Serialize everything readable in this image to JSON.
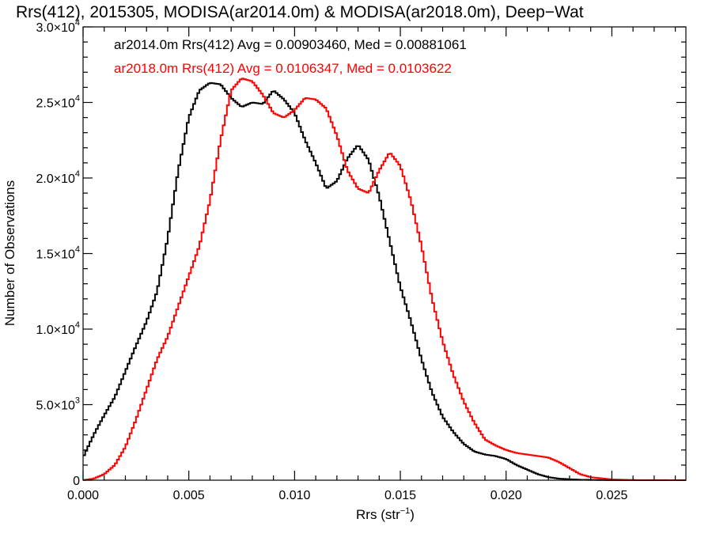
{
  "chart_data": {
    "type": "line",
    "step": true,
    "title": "Rrs(412), 2015305, MODISA(ar2014.0m) & MODISA(ar2018.0m), Deep−Wat",
    "xlabel_base": "Rrs (str",
    "xlabel_sup": "−1",
    "xlabel_close": ")",
    "ylabel": "Number of Observations",
    "xlim": [
      0.0,
      0.0285
    ],
    "ylim": [
      0,
      30000
    ],
    "x_ticks": [
      {
        "value": 0.0,
        "label": "0.000"
      },
      {
        "value": 0.005,
        "label": "0.005"
      },
      {
        "value": 0.01,
        "label": "0.010"
      },
      {
        "value": 0.015,
        "label": "0.015"
      },
      {
        "value": 0.02,
        "label": "0.020"
      },
      {
        "value": 0.025,
        "label": "0.025"
      }
    ],
    "y_ticks": [
      {
        "value": 0,
        "mant": "0",
        "exp": ""
      },
      {
        "value": 5000,
        "mant": "5.0×10",
        "exp": "3"
      },
      {
        "value": 10000,
        "mant": "1.0×10",
        "exp": "4"
      },
      {
        "value": 15000,
        "mant": "1.5×10",
        "exp": "4"
      },
      {
        "value": 20000,
        "mant": "2.0×10",
        "exp": "4"
      },
      {
        "value": 25000,
        "mant": "2.5×10",
        "exp": "4"
      },
      {
        "value": 30000,
        "mant": "3.0×10",
        "exp": "4"
      }
    ],
    "legend": [
      {
        "text": "ar2014.0m Rrs(412) Avg = 0.00903460, Med = 0.00881061",
        "color": "#000000"
      },
      {
        "text": "ar2018.0m Rrs(412) Avg = 0.0106347, Med = 0.0103622",
        "color": "#ff0000"
      }
    ],
    "series": [
      {
        "color": "#000000",
        "points": [
          [
            0.0,
            1500
          ],
          [
            0.0005,
            3000
          ],
          [
            0.001,
            4300
          ],
          [
            0.0015,
            5500
          ],
          [
            0.002,
            7200
          ],
          [
            0.0025,
            8900
          ],
          [
            0.003,
            10500
          ],
          [
            0.0035,
            12500
          ],
          [
            0.004,
            16000
          ],
          [
            0.0045,
            20500
          ],
          [
            0.005,
            24000
          ],
          [
            0.0055,
            25800
          ],
          [
            0.006,
            26300
          ],
          [
            0.0065,
            26200
          ],
          [
            0.007,
            25300
          ],
          [
            0.0075,
            24700
          ],
          [
            0.008,
            25000
          ],
          [
            0.0085,
            24900
          ],
          [
            0.009,
            25800
          ],
          [
            0.0095,
            25200
          ],
          [
            0.01,
            24300
          ],
          [
            0.0105,
            22500
          ],
          [
            0.011,
            21000
          ],
          [
            0.0115,
            19300
          ],
          [
            0.012,
            19800
          ],
          [
            0.0125,
            21300
          ],
          [
            0.013,
            22200
          ],
          [
            0.0135,
            21200
          ],
          [
            0.014,
            18800
          ],
          [
            0.0145,
            15800
          ],
          [
            0.015,
            12800
          ],
          [
            0.0155,
            10500
          ],
          [
            0.016,
            8000
          ],
          [
            0.0165,
            5800
          ],
          [
            0.017,
            4200
          ],
          [
            0.0175,
            3200
          ],
          [
            0.018,
            2400
          ],
          [
            0.0185,
            1900
          ],
          [
            0.019,
            1700
          ],
          [
            0.0195,
            1600
          ],
          [
            0.02,
            1400
          ],
          [
            0.0205,
            1000
          ],
          [
            0.021,
            700
          ],
          [
            0.0215,
            400
          ],
          [
            0.022,
            200
          ],
          [
            0.0225,
            100
          ],
          [
            0.0235,
            30
          ],
          [
            0.025,
            5
          ],
          [
            0.0285,
            0
          ]
        ]
      },
      {
        "color": "#ff0000",
        "points": [
          [
            0.0,
            0
          ],
          [
            0.0005,
            100
          ],
          [
            0.001,
            400
          ],
          [
            0.0015,
            1000
          ],
          [
            0.002,
            2200
          ],
          [
            0.0025,
            4000
          ],
          [
            0.003,
            6000
          ],
          [
            0.0035,
            8000
          ],
          [
            0.004,
            9500
          ],
          [
            0.0045,
            11500
          ],
          [
            0.005,
            13500
          ],
          [
            0.0055,
            15500
          ],
          [
            0.006,
            18500
          ],
          [
            0.0065,
            22500
          ],
          [
            0.007,
            25800
          ],
          [
            0.0075,
            26600
          ],
          [
            0.008,
            26400
          ],
          [
            0.0085,
            25500
          ],
          [
            0.009,
            24300
          ],
          [
            0.0095,
            24000
          ],
          [
            0.01,
            24500
          ],
          [
            0.0105,
            25300
          ],
          [
            0.011,
            25200
          ],
          [
            0.0115,
            24600
          ],
          [
            0.012,
            22800
          ],
          [
            0.0125,
            20500
          ],
          [
            0.013,
            19300
          ],
          [
            0.0135,
            19000
          ],
          [
            0.014,
            20500
          ],
          [
            0.0145,
            21700
          ],
          [
            0.015,
            20800
          ],
          [
            0.0155,
            18500
          ],
          [
            0.016,
            15500
          ],
          [
            0.0165,
            12000
          ],
          [
            0.017,
            9200
          ],
          [
            0.0175,
            7000
          ],
          [
            0.018,
            5200
          ],
          [
            0.0185,
            3800
          ],
          [
            0.019,
            2700
          ],
          [
            0.0195,
            2300
          ],
          [
            0.02,
            2000
          ],
          [
            0.0205,
            1800
          ],
          [
            0.021,
            1700
          ],
          [
            0.0215,
            1600
          ],
          [
            0.022,
            1500
          ],
          [
            0.0225,
            1200
          ],
          [
            0.023,
            800
          ],
          [
            0.0235,
            400
          ],
          [
            0.024,
            200
          ],
          [
            0.025,
            50
          ],
          [
            0.026,
            10
          ],
          [
            0.0285,
            0
          ]
        ]
      }
    ]
  }
}
